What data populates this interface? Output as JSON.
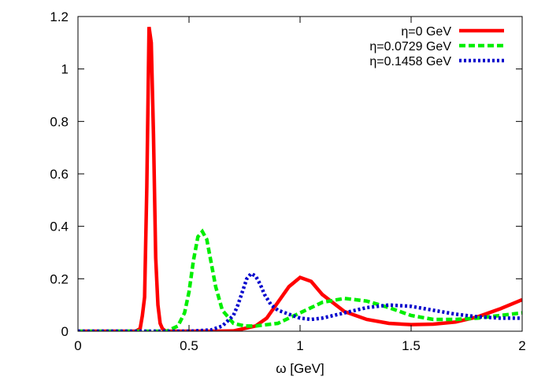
{
  "chart_data": {
    "type": "line",
    "title": "",
    "xlabel": "ω [GeV]",
    "ylabel": "",
    "xlim": [
      0,
      2
    ],
    "ylim": [
      0,
      1.2
    ],
    "x_ticks": [
      0,
      0.5,
      1,
      1.5,
      2
    ],
    "x_tick_labels": [
      "0",
      "0.5",
      "1",
      "1.5",
      "2"
    ],
    "y_ticks": [
      0,
      0.2,
      0.4,
      0.6,
      0.8,
      1,
      1.2
    ],
    "y_tick_labels": [
      "0",
      "0.2",
      "0.4",
      "0.6",
      "0.8",
      "1",
      "1.2"
    ],
    "grid": false,
    "legend_position": "top-right",
    "series": [
      {
        "name": "η=0 GeV",
        "color": "#ff0000",
        "style": "solid",
        "x": [
          0,
          0.2,
          0.26,
          0.28,
          0.29,
          0.3,
          0.31,
          0.32,
          0.33,
          0.34,
          0.35,
          0.36,
          0.37,
          0.38,
          0.39,
          0.4,
          0.5,
          0.6,
          0.7,
          0.8,
          0.85,
          0.9,
          0.95,
          1.0,
          1.05,
          1.1,
          1.2,
          1.3,
          1.4,
          1.5,
          1.6,
          1.7,
          1.8,
          1.9,
          2.0
        ],
        "y": [
          0,
          0,
          0,
          0.01,
          0.06,
          0.13,
          0.55,
          1.16,
          1.1,
          0.75,
          0.28,
          0.1,
          0.03,
          0.01,
          0.003,
          0,
          0,
          0,
          0.001,
          0.02,
          0.05,
          0.11,
          0.17,
          0.205,
          0.19,
          0.14,
          0.075,
          0.045,
          0.03,
          0.025,
          0.027,
          0.035,
          0.055,
          0.085,
          0.12
        ]
      },
      {
        "name": "η=0.0729 GeV",
        "color": "#00ee00",
        "style": "dashed",
        "x": [
          0,
          0.3,
          0.4,
          0.45,
          0.48,
          0.5,
          0.52,
          0.54,
          0.56,
          0.58,
          0.6,
          0.62,
          0.65,
          0.7,
          0.75,
          0.8,
          0.9,
          1.0,
          1.1,
          1.2,
          1.3,
          1.4,
          1.5,
          1.6,
          1.7,
          1.8,
          1.9,
          2.0
        ],
        "y": [
          0,
          0,
          0,
          0.02,
          0.07,
          0.15,
          0.27,
          0.36,
          0.38,
          0.35,
          0.26,
          0.17,
          0.08,
          0.03,
          0.02,
          0.02,
          0.03,
          0.07,
          0.11,
          0.125,
          0.115,
          0.09,
          0.06,
          0.045,
          0.045,
          0.05,
          0.06,
          0.07
        ]
      },
      {
        "name": "η=0.1458 GeV",
        "color": "#0000cc",
        "style": "dotted",
        "x": [
          0,
          0.5,
          0.6,
          0.65,
          0.7,
          0.72,
          0.74,
          0.76,
          0.78,
          0.8,
          0.82,
          0.84,
          0.87,
          0.9,
          0.95,
          1.0,
          1.05,
          1.1,
          1.2,
          1.3,
          1.4,
          1.5,
          1.6,
          1.7,
          1.8,
          1.9,
          2.0
        ],
        "y": [
          0,
          0,
          0.005,
          0.02,
          0.06,
          0.1,
          0.15,
          0.2,
          0.22,
          0.21,
          0.18,
          0.14,
          0.1,
          0.08,
          0.065,
          0.05,
          0.045,
          0.05,
          0.07,
          0.09,
          0.1,
          0.095,
          0.08,
          0.065,
          0.055,
          0.05,
          0.05
        ]
      }
    ]
  }
}
